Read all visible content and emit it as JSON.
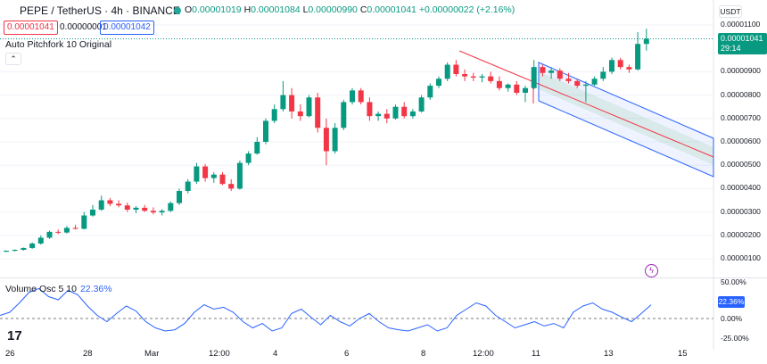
{
  "header": {
    "symbol": "PEPE / TetherUS · 4h · BINANCE",
    "open_label": "O",
    "open": "0.00001019",
    "high_label": "H",
    "high": "0.00001084",
    "low_label": "L",
    "low": "0.00000990",
    "close_label": "C",
    "close": "0.00001041",
    "change": "+0.00000022 (+2.16%)"
  },
  "trade": {
    "sell_price": "0.00001041",
    "spread": "0.00000001",
    "buy_price": "0.00001042"
  },
  "indicator_label": "Auto Pitchfork 10 Original",
  "currency": "USDT",
  "last_price": {
    "value": "0.00001041",
    "countdown": "29:14"
  },
  "price_axis": [
    "0.00001100",
    "0.00000900",
    "0.00000800",
    "0.00000700",
    "0.00000600",
    "0.00000500",
    "0.00000400",
    "0.00000300",
    "0.00000200",
    "0.00000100"
  ],
  "oscillator": {
    "label": "Volume Osc 5 10",
    "value": "22.36%",
    "ticks": [
      "50.00%",
      "0.00%",
      "-25.00%"
    ]
  },
  "time_axis": [
    "26",
    "28",
    "Mar",
    "12:00",
    "4",
    "6",
    "8",
    "12:00",
    "11",
    "13",
    "15"
  ],
  "colors": {
    "up": "#089981",
    "down": "#f23645",
    "accent": "#2962ff",
    "grid": "#f0f3fa"
  },
  "icons": {
    "logo": "tradingview-logo-icon",
    "flash": "flash-icon",
    "collapse": "chevron-up-icon"
  },
  "chart_data": {
    "type": "candlestick",
    "series": [
      {
        "name": "PEPE / TetherUS",
        "values": [
          [
            1.3e-06,
            1.36e-06,
            1.28e-06,
            1.34e-06
          ],
          [
            1.34e-06,
            1.4e-06,
            1.31e-06,
            1.38e-06
          ],
          [
            1.38e-06,
            1.48e-06,
            1.35e-06,
            1.46e-06
          ],
          [
            1.46e-06,
            1.7e-06,
            1.42e-06,
            1.65e-06
          ],
          [
            1.65e-06,
            2e-06,
            1.6e-06,
            1.9e-06
          ],
          [
            1.9e-06,
            2.2e-06,
            1.85e-06,
            2.15e-06
          ],
          [
            2.15e-06,
            2.25e-06,
            2.05e-06,
            2.12e-06
          ],
          [
            2.12e-06,
            2.4e-06,
            2.08e-06,
            2.32e-06
          ],
          [
            2.32e-06,
            2.45e-06,
            2.25e-06,
            2.28e-06
          ],
          [
            2.28e-06,
            3e-06,
            2.25e-06,
            2.85e-06
          ],
          [
            2.85e-06,
            3.3e-06,
            2.8e-06,
            3.1e-06
          ],
          [
            3.1e-06,
            3.7e-06,
            3.05e-06,
            3.5e-06
          ],
          [
            3.5e-06,
            3.6e-06,
            3.25e-06,
            3.35e-06
          ],
          [
            3.35e-06,
            3.5e-06,
            3.2e-06,
            3.28e-06
          ],
          [
            3.28e-06,
            3.4e-06,
            3e-06,
            3.1e-06
          ],
          [
            3.1e-06,
            3.25e-06,
            2.95e-06,
            3.18e-06
          ],
          [
            3.18e-06,
            3.3e-06,
            3e-06,
            3.05e-06
          ],
          [
            3.05e-06,
            3.2e-06,
            2.9e-06,
            2.98e-06
          ],
          [
            2.98e-06,
            3.12e-06,
            2.85e-06,
            3.05e-06
          ],
          [
            3.05e-06,
            3.45e-06,
            3e-06,
            3.38e-06
          ],
          [
            3.38e-06,
            4e-06,
            3.3e-06,
            3.9e-06
          ],
          [
            3.9e-06,
            4.4e-06,
            3.8e-06,
            4.3e-06
          ],
          [
            4.3e-06,
            5.1e-06,
            4.2e-06,
            4.95e-06
          ],
          [
            4.95e-06,
            5.05e-06,
            4.3e-06,
            4.45e-06
          ],
          [
            4.45e-06,
            4.7e-06,
            4.25e-06,
            4.6e-06
          ],
          [
            4.6e-06,
            4.7e-06,
            4.15e-06,
            4.2e-06
          ],
          [
            4.2e-06,
            4.4e-06,
            3.9e-06,
            4e-06
          ],
          [
            4e-06,
            5.2e-06,
            3.95e-06,
            5.1e-06
          ],
          [
            5.1e-06,
            5.6e-06,
            5e-06,
            5.5e-06
          ],
          [
            5.5e-06,
            6.2e-06,
            5.45e-06,
            6e-06
          ],
          [
            6e-06,
            7e-06,
            5.9e-06,
            6.9e-06
          ],
          [
            6.9e-06,
            7.6e-06,
            6.8e-06,
            7.4e-06
          ],
          [
            7.4e-06,
            8.6e-06,
            7.3e-06,
            8e-06
          ],
          [
            8e-06,
            8.3e-06,
            7e-06,
            7.3e-06
          ],
          [
            7.3e-06,
            7.6e-06,
            6.9e-06,
            7.1e-06
          ],
          [
            7.1e-06,
            8e-06,
            7.05e-06,
            7.9e-06
          ],
          [
            7.9e-06,
            8.1e-06,
            6.4e-06,
            6.6e-06
          ],
          [
            6.6e-06,
            7e-06,
            5e-06,
            5.6e-06
          ],
          [
            5.6e-06,
            6.8e-06,
            5.5e-06,
            6.6e-06
          ],
          [
            6.6e-06,
            7.8e-06,
            6.5e-06,
            7.7e-06
          ],
          [
            7.7e-06,
            8.3e-06,
            7.6e-06,
            8.2e-06
          ],
          [
            8.2e-06,
            8.3e-06,
            7.6e-06,
            7.7e-06
          ],
          [
            7.7e-06,
            7.9e-06,
            6.9e-06,
            7.1e-06
          ],
          [
            7.1e-06,
            7.3e-06,
            6.9e-06,
            7.2e-06
          ],
          [
            7.2e-06,
            7.4e-06,
            6.8e-06,
            7e-06
          ],
          [
            7e-06,
            7.6e-06,
            6.95e-06,
            7.5e-06
          ],
          [
            7.5e-06,
            7.7e-06,
            7e-06,
            7.1e-06
          ],
          [
            7.1e-06,
            7.4e-06,
            7e-06,
            7.3e-06
          ],
          [
            7.3e-06,
            8e-06,
            7.25e-06,
            7.9e-06
          ],
          [
            7.9e-06,
            8.5e-06,
            7.8e-06,
            8.4e-06
          ],
          [
            8.4e-06,
            8.8e-06,
            8.3e-06,
            8.7e-06
          ],
          [
            8.7e-06,
            9.4e-06,
            8.6e-06,
            9.3e-06
          ],
          [
            9.3e-06,
            9.5e-06,
            8.8e-06,
            8.9e-06
          ],
          [
            8.9e-06,
            9.1e-06,
            8.6e-06,
            8.8e-06
          ],
          [
            8.8e-06,
            8.95e-06,
            8.6e-06,
            8.75e-06
          ],
          [
            8.75e-06,
            8.9e-06,
            8.55e-06,
            8.8e-06
          ],
          [
            8.8e-06,
            9e-06,
            8.5e-06,
            8.6e-06
          ],
          [
            8.6e-06,
            8.8e-06,
            8.2e-06,
            8.3e-06
          ],
          [
            8.3e-06,
            8.5e-06,
            8.15e-06,
            8.45e-06
          ],
          [
            8.45e-06,
            8.6e-06,
            8e-06,
            8.1e-06
          ],
          [
            8.1e-06,
            8.4e-06,
            7.7e-06,
            8.3e-06
          ],
          [
            8.3e-06,
            9.5e-06,
            8.25e-06,
            9.2e-06
          ],
          [
            9.2e-06,
            9.3e-06,
            8.8e-06,
            8.95e-06
          ],
          [
            8.95e-06,
            9.2e-06,
            8.7e-06,
            9.05e-06
          ],
          [
            9.05e-06,
            9.15e-06,
            8.6e-06,
            8.7e-06
          ],
          [
            8.7e-06,
            8.95e-06,
            8.5e-06,
            8.6e-06
          ],
          [
            8.6e-06,
            8.7e-06,
            8.3e-06,
            8.4e-06
          ],
          [
            8.4e-06,
            8.6e-06,
            7.7e-06,
            8.45e-06
          ],
          [
            8.45e-06,
            8.8e-06,
            8.4e-06,
            8.7e-06
          ],
          [
            8.7e-06,
            9.2e-06,
            8.6e-06,
            9e-06
          ],
          [
            9e-06,
            9.6e-06,
            8.9e-06,
            9.5e-06
          ],
          [
            9.5e-06,
            9.6e-06,
            9.1e-06,
            9.2e-06
          ],
          [
            9.2e-06,
            9.3e-06,
            8.95e-06,
            9.1e-06
          ],
          [
            9.1e-06,
            1.07e-05,
            9.05e-06,
            1.019e-05
          ],
          [
            1.019e-05,
            1.084e-05,
            9.9e-06,
            1.041e-05
          ]
        ]
      }
    ],
    "oscillator": {
      "name": "Volume Osc 5 10",
      "values": [
        5,
        10,
        25,
        42,
        48,
        35,
        30,
        45,
        38,
        20,
        5,
        -5,
        8,
        20,
        12,
        -5,
        -15,
        -20,
        -18,
        -8,
        10,
        22,
        15,
        18,
        10,
        -5,
        -15,
        -8,
        -20,
        -15,
        8,
        15,
        2,
        -10,
        5,
        -5,
        -12,
        0,
        8,
        -5,
        -15,
        -18,
        -20,
        -15,
        -10,
        -20,
        -15,
        5,
        15,
        25,
        20,
        5,
        -5,
        -15,
        -10,
        -5,
        -12,
        -8,
        -15,
        10,
        20,
        25,
        15,
        10,
        2,
        -5,
        8,
        22
      ]
    }
  }
}
